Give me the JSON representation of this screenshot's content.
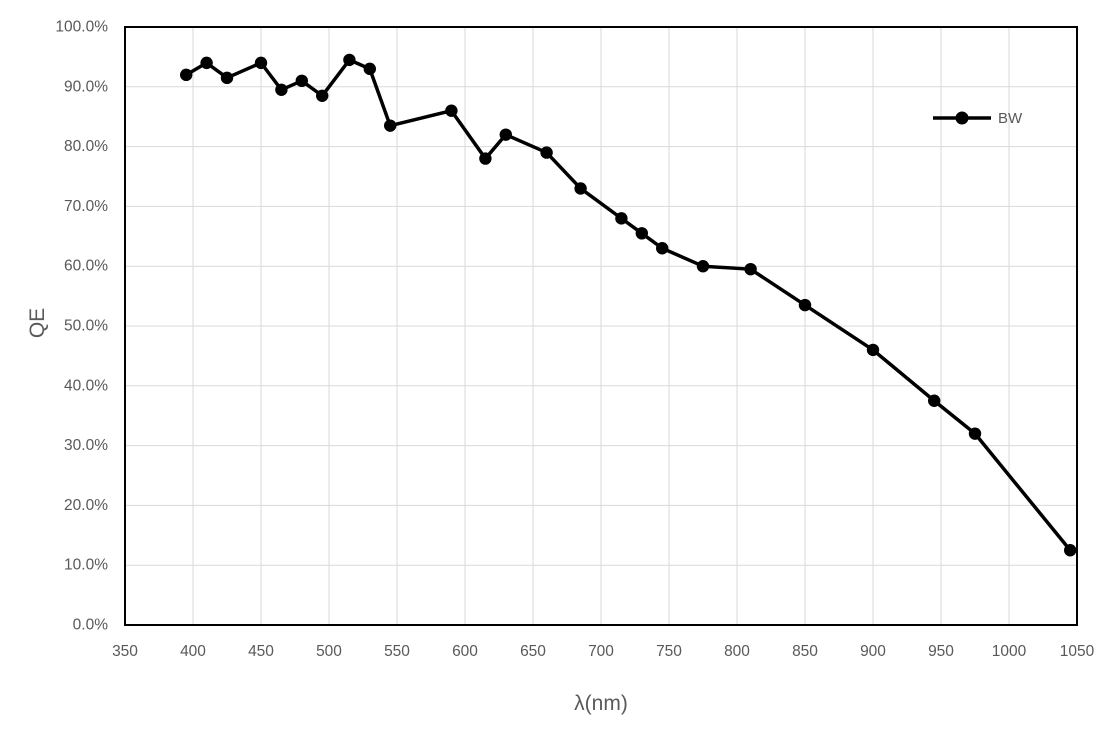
{
  "chart_data": {
    "type": "line",
    "title": "",
    "xlabel": "λ(nm)",
    "ylabel": "QE",
    "grid": true,
    "legend_position": "inside-top-right",
    "xlim": [
      350,
      1050
    ],
    "ylim_percent": [
      0,
      100
    ],
    "x_ticks": [
      350,
      400,
      450,
      500,
      550,
      600,
      650,
      700,
      750,
      800,
      850,
      900,
      950,
      1000,
      1050
    ],
    "x_tick_labels": [
      "350",
      "400",
      "450",
      "500",
      "550",
      "600",
      "650",
      "700",
      "750",
      "800",
      "850",
      "900",
      "950",
      "1000",
      "1050"
    ],
    "y_ticks": [
      0,
      10,
      20,
      30,
      40,
      50,
      60,
      70,
      80,
      90,
      100
    ],
    "y_tick_labels": [
      "0.0%",
      "10.0%",
      "20.0%",
      "30.0%",
      "40.0%",
      "50.0%",
      "60.0%",
      "70.0%",
      "80.0%",
      "90.0%",
      "100.0%"
    ],
    "series": [
      {
        "name": "BW",
        "color": "#000000",
        "marker": "circle",
        "x": [
          395,
          410,
          425,
          450,
          465,
          480,
          495,
          515,
          530,
          545,
          590,
          615,
          630,
          660,
          685,
          715,
          730,
          745,
          775,
          810,
          850,
          900,
          945,
          975,
          1045
        ],
        "y_percent": [
          92,
          94,
          91.5,
          94,
          89.5,
          91,
          88.5,
          94.5,
          93,
          83.5,
          86,
          78,
          82,
          79,
          73,
          68,
          65.5,
          63,
          60,
          59.5,
          53.5,
          46,
          37.5,
          32,
          12.5
        ]
      }
    ],
    "colors": {
      "gridline": "#d9d9d9",
      "axis_text": "#595959",
      "plot_border": "#000000",
      "background": "#ffffff"
    }
  }
}
